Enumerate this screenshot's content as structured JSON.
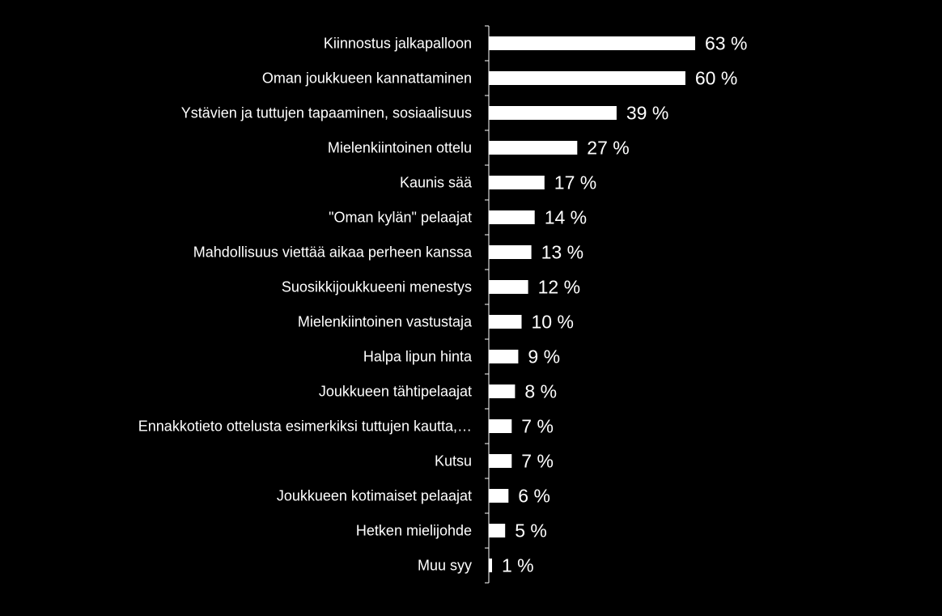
{
  "chart_data": {
    "type": "bar",
    "orientation": "horizontal",
    "title": "",
    "xlabel": "",
    "ylabel": "",
    "xlim": [
      0,
      63
    ],
    "grid": false,
    "legend": "none",
    "colors": {
      "background": "#000000",
      "bar": "#ffffff",
      "text": "#ffffff",
      "axis": "#ffffff"
    },
    "unit_suffix": " %",
    "categories": [
      "Kiinnostus jalkapalloon",
      "Oman joukkueen kannattaminen",
      "Ystävien ja tuttujen tapaaminen, sosiaalisuus",
      "Mielenkiintoinen ottelu",
      "Kaunis sää",
      "\"Oman kylän\" pelaajat",
      "Mahdollisuus viettää aikaa perheen kanssa",
      "Suosikkijoukkueeni menestys",
      "Mielenkiintoinen vastustaja",
      "Halpa lipun hinta",
      "Joukkueen tähtipelaajat",
      "Ennakkotieto ottelusta esimerkiksi tuttujen kautta,…",
      "Kutsu",
      "Joukkueen kotimaiset pelaajat",
      "Hetken mielijohde",
      "Muu syy"
    ],
    "values": [
      63,
      60,
      39,
      27,
      17,
      14,
      13,
      12,
      10,
      9,
      8,
      7,
      7,
      6,
      5,
      1
    ],
    "value_labels": [
      "63 %",
      "60 %",
      "39 %",
      "27 %",
      "17 %",
      "14 %",
      "13 %",
      "12 %",
      "10 %",
      "9 %",
      "8 %",
      "7 %",
      "7 %",
      "6 %",
      "5 %",
      "1 %"
    ]
  }
}
